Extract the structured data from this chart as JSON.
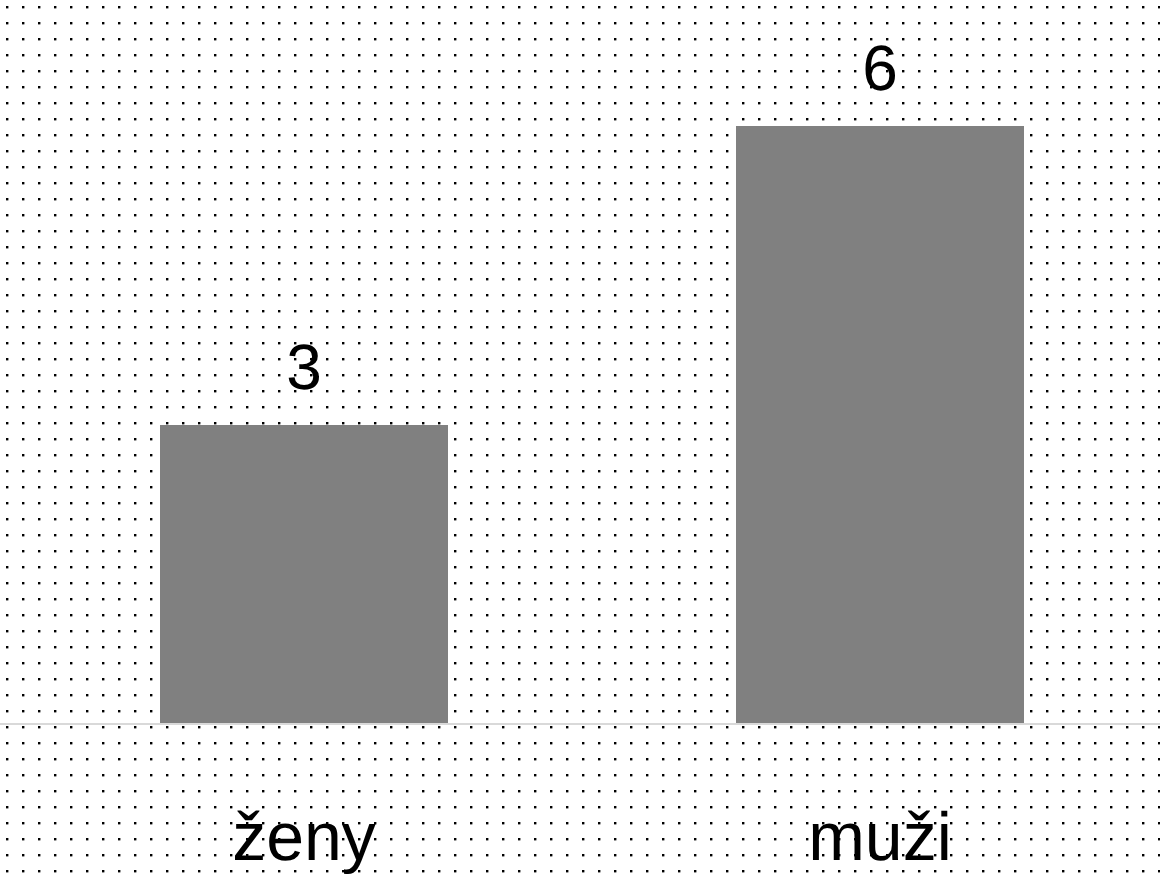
{
  "chart_data": {
    "type": "bar",
    "categories": [
      "ženy",
      "muži"
    ],
    "values": [
      3,
      6
    ],
    "color": "#808080",
    "data_labels": true
  }
}
